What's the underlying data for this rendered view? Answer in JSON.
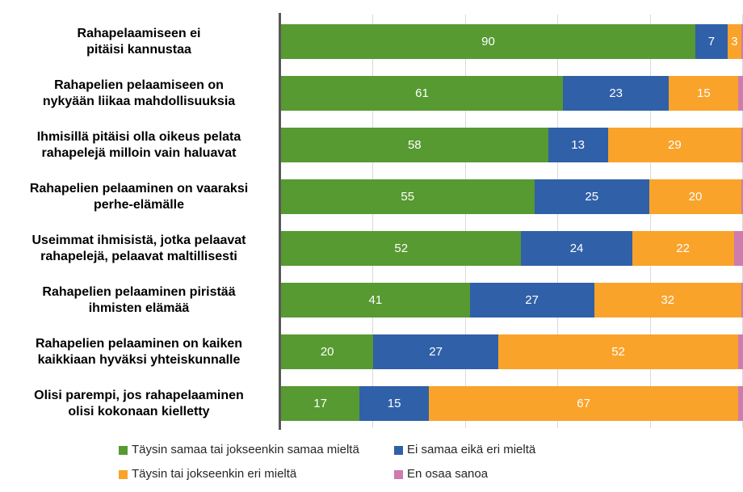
{
  "chart_data": {
    "type": "bar",
    "variant": "horizontal_stacked",
    "title": "",
    "xlabel": "",
    "ylabel": "",
    "xlim": [
      0,
      100
    ],
    "gridline_step": 20,
    "grid": true,
    "axis_tick_labels_visible": false,
    "legend_position": "bottom",
    "categories": [
      "Rahapelaamiseen ei\npitäisi kannustaa",
      "Rahapelien pelaamiseen on\nnykyään liikaa mahdollisuuksia",
      "Ihmisillä pitäisi olla oikeus pelata\nrahapelejä milloin vain haluavat",
      "Rahapelien pelaaminen on vaaraksi\nperhe-elämälle",
      "Useimmat ihmisistä, jotka pelaavat\nrahapelejä, pelaavat maltillisesti",
      "Rahapelien pelaaminen piristää\nihmisten elämää",
      "Rahapelien pelaaminen on kaiken\nkaikkiaan hyväksi yhteiskunnalle",
      "Olisi parempi, jos rahapelaaminen\nolisi kokonaan kielletty"
    ],
    "series": [
      {
        "key": "agree",
        "name": "Täysin samaa tai jokseenkin samaa mieltä",
        "color": "#569A31",
        "values": [
          90,
          61,
          58,
          55,
          52,
          41,
          20,
          17
        ]
      },
      {
        "key": "neutral",
        "name": "Ei samaa eikä eri mieltä",
        "color": "#3060A8",
        "values": [
          7,
          23,
          13,
          25,
          24,
          27,
          27,
          15
        ]
      },
      {
        "key": "disagree",
        "name": "Täysin tai jokseenkin eri mieltä",
        "color": "#F9A32B",
        "values": [
          3,
          15,
          29,
          20,
          22,
          32,
          52,
          67
        ]
      },
      {
        "key": "no_opinion",
        "name": "En osaa sanoa",
        "color": "#CE7BAE",
        "values": [
          0,
          1,
          0,
          0,
          2,
          0,
          1,
          1
        ]
      }
    ],
    "value_labels": {
      "color": "#FFFFFF",
      "hidden_for_series": "no_opinion"
    },
    "colors": {
      "axis": "#595959",
      "grid": "#D9D9D9",
      "background": "#FFFFFF",
      "category_text": "#000000",
      "legend_text": "#262626"
    }
  }
}
